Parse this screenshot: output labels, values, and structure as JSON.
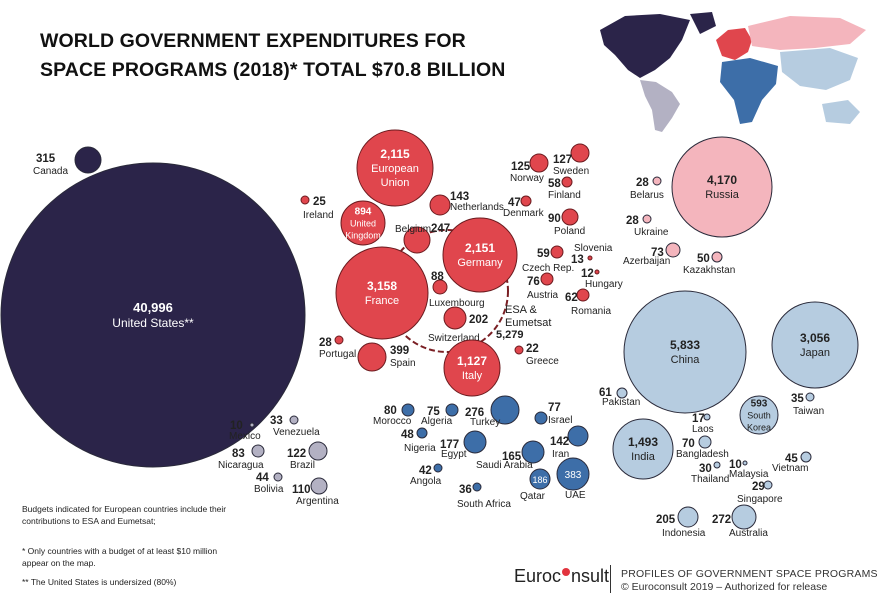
{
  "title_line1": "WORLD GOVERNMENT EXPENDITURES FOR",
  "title_line2": "SPACE PROGRAMS (2018)* TOTAL $70.8 BILLION",
  "notes": {
    "european": "Budgets indicated for European countries include their contributions to ESA and Eumetsat;",
    "threshold": "* Only countries with a budget of at least $10 million appear on the map.",
    "us": "** The United States is undersized (80%)"
  },
  "footer": {
    "logo_left": "Euroc",
    "logo_right": "nsult",
    "publication": "PROFILES OF GOVERNMENT SPACE PROGRAMS",
    "copyright": "© Euroconsult 2019 – Authorized for release"
  },
  "colors": {
    "north_america": "#2b2449",
    "europe": "#e0464d",
    "russia_cis": "#f4b5bd",
    "asia_pacific": "#b6cce0",
    "middle_east_africa": "#3d6ea8",
    "latin_america": "#b3b1c3"
  },
  "chart_data": {
    "type": "bubble",
    "unit": "US$ million",
    "total": "$70.8 BILLION",
    "year": 2018,
    "esa_group": {
      "label1": "ESA &",
      "label2": "Eumetsat",
      "value": "5,279"
    },
    "countries": [
      {
        "name": "Canada",
        "value": "315",
        "region": "north_america"
      },
      {
        "name": "United States**",
        "value": "40,996",
        "region": "north_america"
      },
      {
        "name": "European Union",
        "value": "2,115",
        "region": "europe"
      },
      {
        "name": "Ireland",
        "value": "25",
        "region": "europe"
      },
      {
        "name": "United Kingdom",
        "value": "894",
        "region": "europe"
      },
      {
        "name": "Belgium",
        "value": "247",
        "region": "europe"
      },
      {
        "name": "Netherlands",
        "value": "143",
        "region": "europe"
      },
      {
        "name": "Germany",
        "value": "2,151",
        "region": "europe"
      },
      {
        "name": "France",
        "value": "3,158",
        "region": "europe"
      },
      {
        "name": "Luxembourg",
        "value": "88",
        "region": "europe"
      },
      {
        "name": "Switzerland",
        "value": "202",
        "region": "europe"
      },
      {
        "name": "Portugal",
        "value": "28",
        "region": "europe"
      },
      {
        "name": "Spain",
        "value": "399",
        "region": "europe"
      },
      {
        "name": "Italy",
        "value": "1,127",
        "region": "europe"
      },
      {
        "name": "Greece",
        "value": "22",
        "region": "europe"
      },
      {
        "name": "Norway",
        "value": "125",
        "region": "europe"
      },
      {
        "name": "Sweden",
        "value": "127",
        "region": "europe"
      },
      {
        "name": "Finland",
        "value": "58",
        "region": "europe"
      },
      {
        "name": "Denmark",
        "value": "47",
        "region": "europe"
      },
      {
        "name": "Poland",
        "value": "90",
        "region": "europe"
      },
      {
        "name": "Czech Rep.",
        "value": "59",
        "region": "europe"
      },
      {
        "name": "Slovenia",
        "value": "13",
        "region": "europe"
      },
      {
        "name": "Hungary",
        "value": "12",
        "region": "europe"
      },
      {
        "name": "Austria",
        "value": "76",
        "region": "europe"
      },
      {
        "name": "Romania",
        "value": "62",
        "region": "europe"
      },
      {
        "name": "Belarus",
        "value": "28",
        "region": "russia_cis"
      },
      {
        "name": "Russia",
        "value": "4,170",
        "region": "russia_cis"
      },
      {
        "name": "Ukraine",
        "value": "28",
        "region": "russia_cis"
      },
      {
        "name": "Azerbaijan",
        "value": "73",
        "region": "russia_cis"
      },
      {
        "name": "Kazakhstan",
        "value": "50",
        "region": "russia_cis"
      },
      {
        "name": "China",
        "value": "5,833",
        "region": "asia_pacific"
      },
      {
        "name": "Japan",
        "value": "3,056",
        "region": "asia_pacific"
      },
      {
        "name": "Pakistan",
        "value": "61",
        "region": "asia_pacific"
      },
      {
        "name": "South Korea",
        "value": "593",
        "region": "asia_pacific"
      },
      {
        "name": "Taiwan",
        "value": "35",
        "region": "asia_pacific"
      },
      {
        "name": "Laos",
        "value": "17",
        "region": "asia_pacific"
      },
      {
        "name": "India",
        "value": "1,493",
        "region": "asia_pacific"
      },
      {
        "name": "Bangladesh",
        "value": "70",
        "region": "asia_pacific"
      },
      {
        "name": "Thailand",
        "value": "30",
        "region": "asia_pacific"
      },
      {
        "name": "Malaysia",
        "value": "10",
        "region": "asia_pacific"
      },
      {
        "name": "Vietnam",
        "value": "45",
        "region": "asia_pacific"
      },
      {
        "name": "Singapore",
        "value": "29",
        "region": "asia_pacific"
      },
      {
        "name": "Indonesia",
        "value": "205",
        "region": "asia_pacific"
      },
      {
        "name": "Australia",
        "value": "272",
        "region": "asia_pacific"
      },
      {
        "name": "Mexico",
        "value": "10",
        "region": "latin_america"
      },
      {
        "name": "Venezuela",
        "value": "33",
        "region": "latin_america"
      },
      {
        "name": "Nicaragua",
        "value": "83",
        "region": "latin_america"
      },
      {
        "name": "Brazil",
        "value": "122",
        "region": "latin_america"
      },
      {
        "name": "Bolivia",
        "value": "44",
        "region": "latin_america"
      },
      {
        "name": "Argentina",
        "value": "110",
        "region": "latin_america"
      },
      {
        "name": "Morocco",
        "value": "80",
        "region": "middle_east_africa"
      },
      {
        "name": "Algeria",
        "value": "75",
        "region": "middle_east_africa"
      },
      {
        "name": "Turkey",
        "value": "276",
        "region": "middle_east_africa"
      },
      {
        "name": "Israel",
        "value": "77",
        "region": "middle_east_africa"
      },
      {
        "name": "Nigeria",
        "value": "48",
        "region": "middle_east_africa"
      },
      {
        "name": "Iran",
        "value": "142",
        "region": "middle_east_africa"
      },
      {
        "name": "Egypt",
        "value": "177",
        "region": "middle_east_africa"
      },
      {
        "name": "Saudi Arabia",
        "value": "165",
        "region": "middle_east_africa"
      },
      {
        "name": "Angola",
        "value": "42",
        "region": "middle_east_africa"
      },
      {
        "name": "Qatar",
        "value": "186",
        "region": "middle_east_africa"
      },
      {
        "name": "UAE",
        "value": "383",
        "region": "middle_east_africa"
      },
      {
        "name": "South Africa",
        "value": "36",
        "region": "middle_east_africa"
      }
    ]
  }
}
